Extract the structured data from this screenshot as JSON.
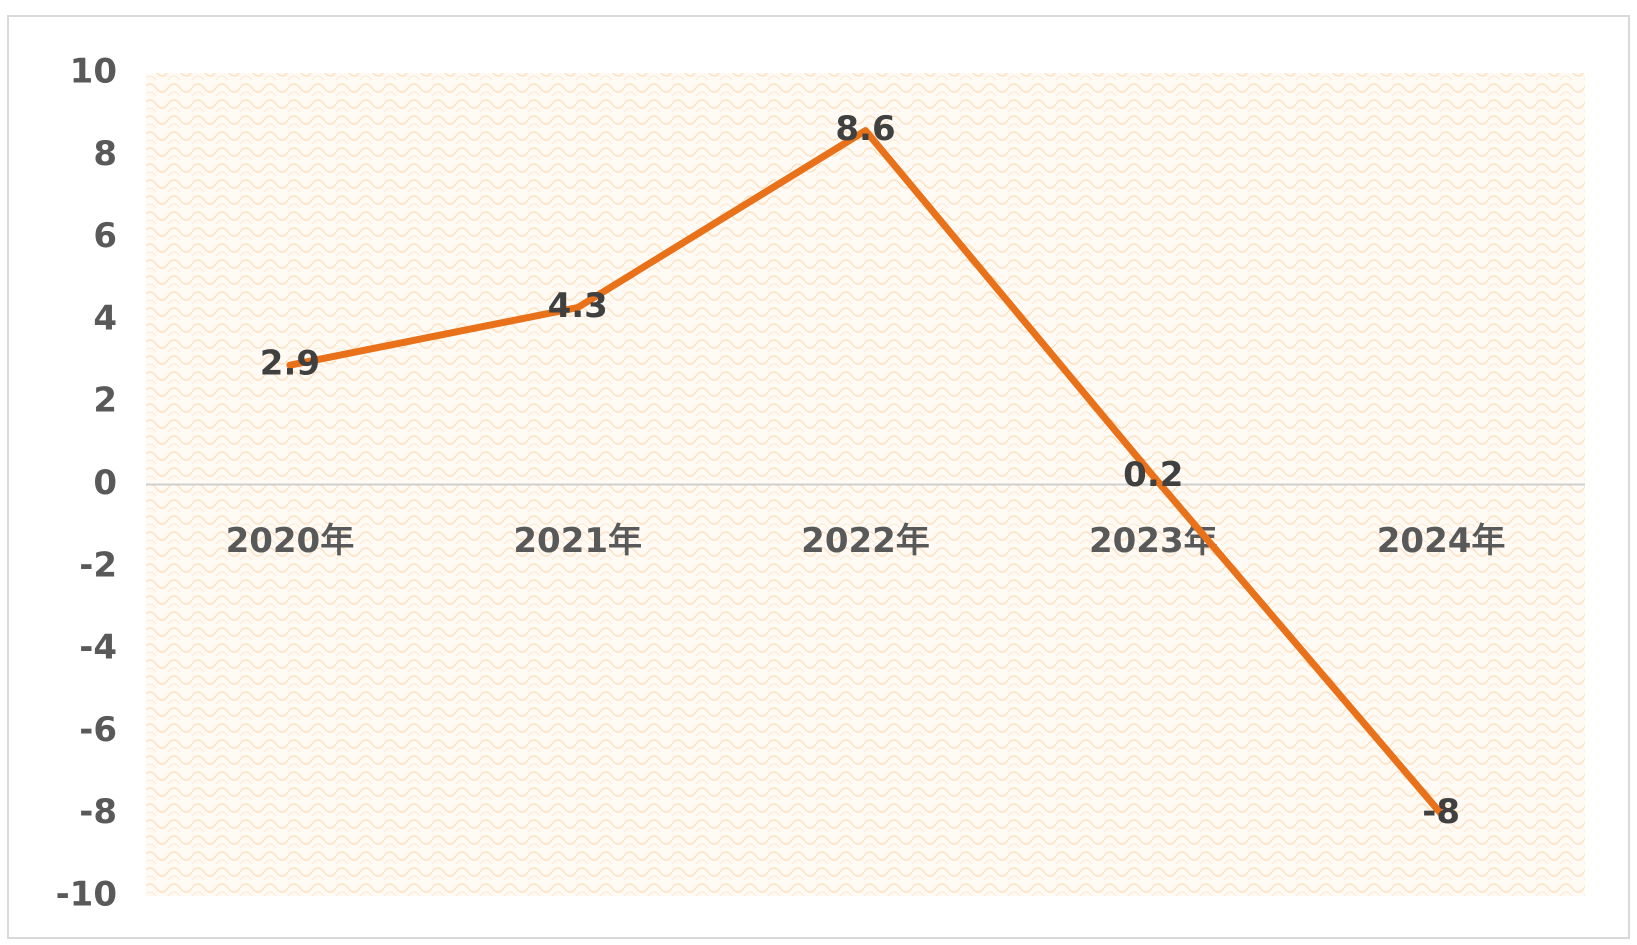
{
  "chart_data": {
    "type": "line",
    "categories": [
      "2020年",
      "2021年",
      "2022年",
      "2023年",
      "2024年"
    ],
    "series": [
      {
        "name": null,
        "color": "#e8711a",
        "values": [
          2.9,
          4.3,
          8.6,
          0.2,
          -8
        ]
      }
    ],
    "ylim": [
      -10,
      10
    ],
    "yticks": [
      -10,
      -8,
      -6,
      -4,
      -2,
      0,
      2,
      4,
      6,
      8,
      10
    ],
    "data_labels": true
  }
}
